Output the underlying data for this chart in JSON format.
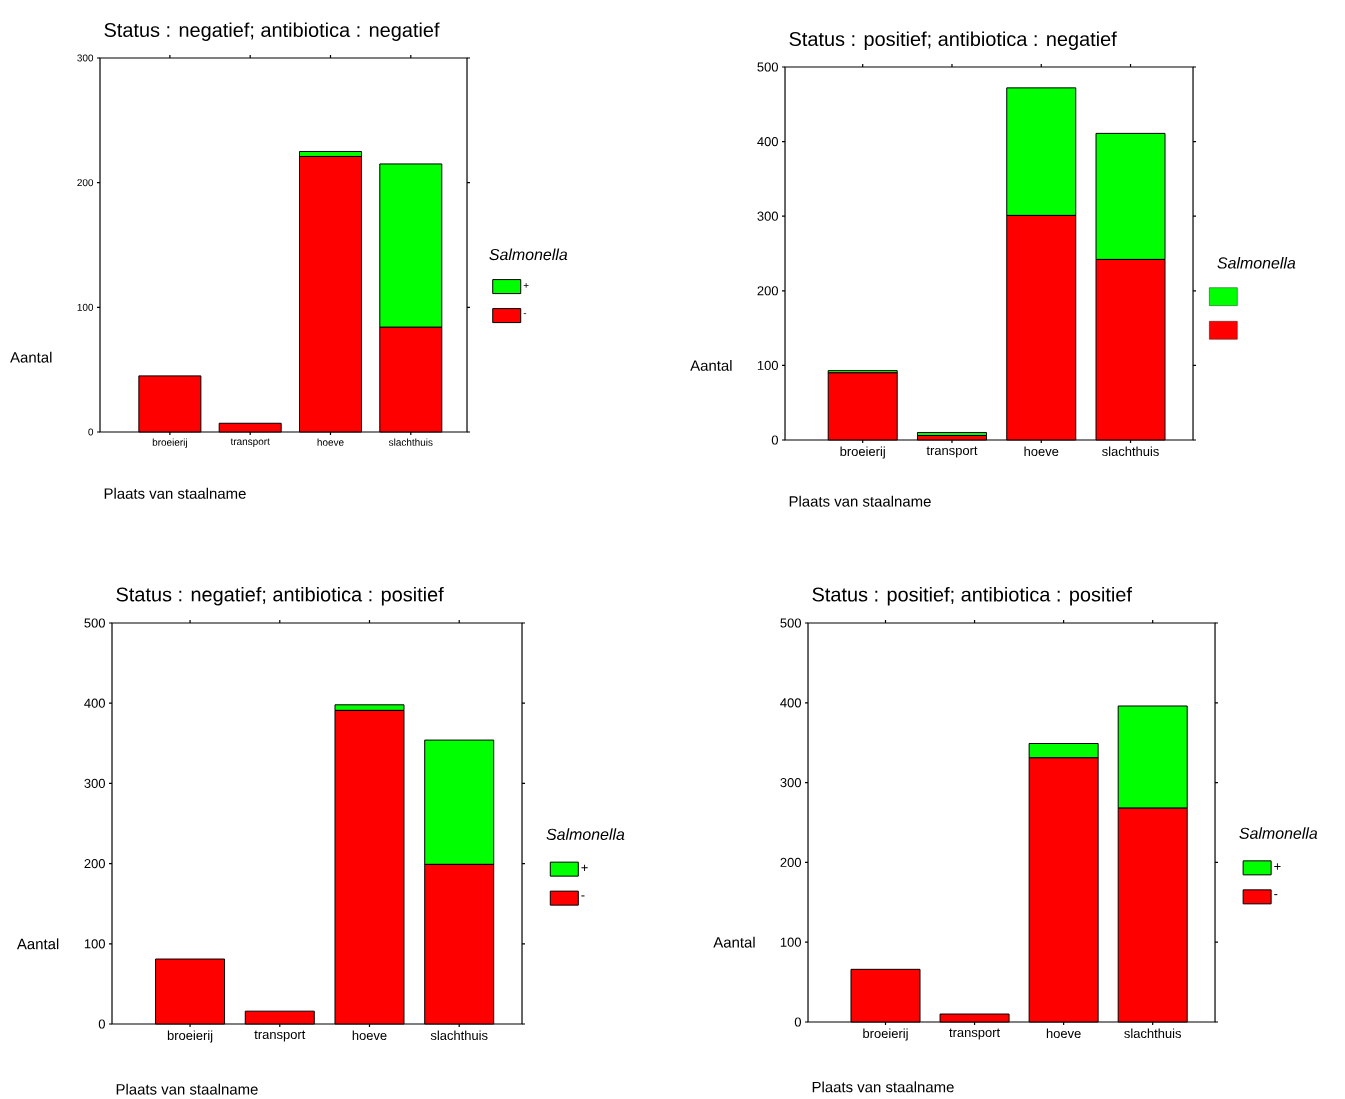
{
  "chart_data": [
    {
      "type": "bar",
      "title": "Status : negatief; antibiotica : negatief",
      "xlabel": "Plaats van staalname",
      "ylabel": "Aantal",
      "legend_title": "*Salmonella*",
      "legend": "right",
      "stacked": true,
      "categories": [
        "broeierij",
        "transport",
        "hoeve",
        "slachthuis"
      ],
      "ylim": [
        0,
        300
      ],
      "yticks": [
        0,
        100,
        200,
        300
      ],
      "series": [
        {
          "name": "-",
          "color": "#ff0000",
          "values": [
            45,
            7,
            221,
            84
          ]
        },
        {
          "name": "+",
          "color": "#00ff00",
          "values": [
            0,
            0,
            4,
            131
          ]
        }
      ]
    },
    {
      "type": "bar",
      "title": "Status : positief; antibiotica : negatief",
      "xlabel": "Plaats van staalname",
      "ylabel": "Aantal",
      "legend_title": "*Salmonella*",
      "legend": "right",
      "stacked": true,
      "categories": [
        "broeierij",
        "transport",
        "hoeve",
        "slachthuis"
      ],
      "ylim": [
        0,
        500
      ],
      "yticks": [
        0,
        100,
        200,
        300,
        400,
        500
      ],
      "series": [
        {
          "color": "#ff0000",
          "values": [
            90,
            6,
            301,
            242
          ]
        },
        {
          "color": "#00ff00",
          "values": [
            3,
            4,
            171,
            169
          ]
        }
      ]
    },
    {
      "type": "bar",
      "title": "Status : negatief; antibiotica : positief",
      "xlabel": "Plaats van staalname",
      "ylabel": "Aantal",
      "legend_title": "*Salmonella*",
      "legend": "right",
      "stacked": true,
      "categories": [
        "broeierij",
        "transport",
        "hoeve",
        "slachthuis"
      ],
      "ylim": [
        0,
        500
      ],
      "yticks": [
        0,
        100,
        200,
        300,
        400,
        500
      ],
      "series": [
        {
          "name": "-",
          "color": "#ff0000",
          "values": [
            81,
            16,
            391,
            199
          ]
        },
        {
          "name": "+",
          "color": "#00ff00",
          "values": [
            0,
            0,
            7,
            155
          ]
        }
      ]
    },
    {
      "type": "bar",
      "title": "Status : positief; antibiotica : positief",
      "xlabel": "Plaats van staalname",
      "ylabel": "Aantal",
      "legend_title": "*Salmonella*",
      "legend": "right",
      "stacked": true,
      "categories": [
        "broeierij",
        "transport",
        "hoeve",
        "slachthuis"
      ],
      "ylim": [
        0,
        500
      ],
      "yticks": [
        0,
        100,
        200,
        300,
        400,
        500
      ],
      "series": [
        {
          "name": "-",
          "color": "#ff0000",
          "values": [
            66,
            10,
            331,
            268
          ]
        },
        {
          "name": "+",
          "color": "#00ff00",
          "values": [
            0,
            0,
            18,
            128
          ]
        }
      ]
    }
  ]
}
